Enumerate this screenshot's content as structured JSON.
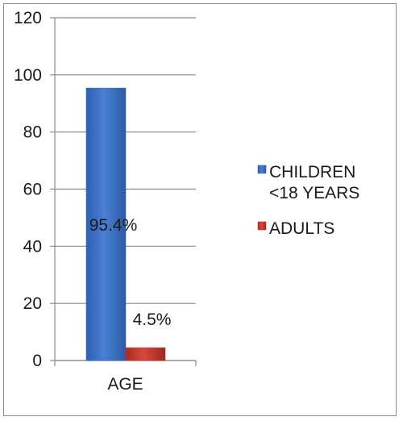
{
  "chart_data": {
    "type": "bar",
    "categories": [
      "AGE"
    ],
    "series": [
      {
        "name": "CHILDREN <18 YEARS",
        "values": [
          95.4
        ],
        "color": "#3a6fc4",
        "data_label": "95.4%"
      },
      {
        "name": "ADULTS",
        "values": [
          4.5
        ],
        "color": "#c0392b",
        "data_label": "4.5%"
      }
    ],
    "legend_lines": [
      [
        "CHILDREN",
        "<18 YEARS"
      ],
      [
        "ADULTS"
      ]
    ],
    "yticks": [
      "0",
      "20",
      "40",
      "60",
      "80",
      "100",
      "120"
    ],
    "ylim": [
      0,
      120
    ],
    "grid": true,
    "legend_position": "right"
  }
}
